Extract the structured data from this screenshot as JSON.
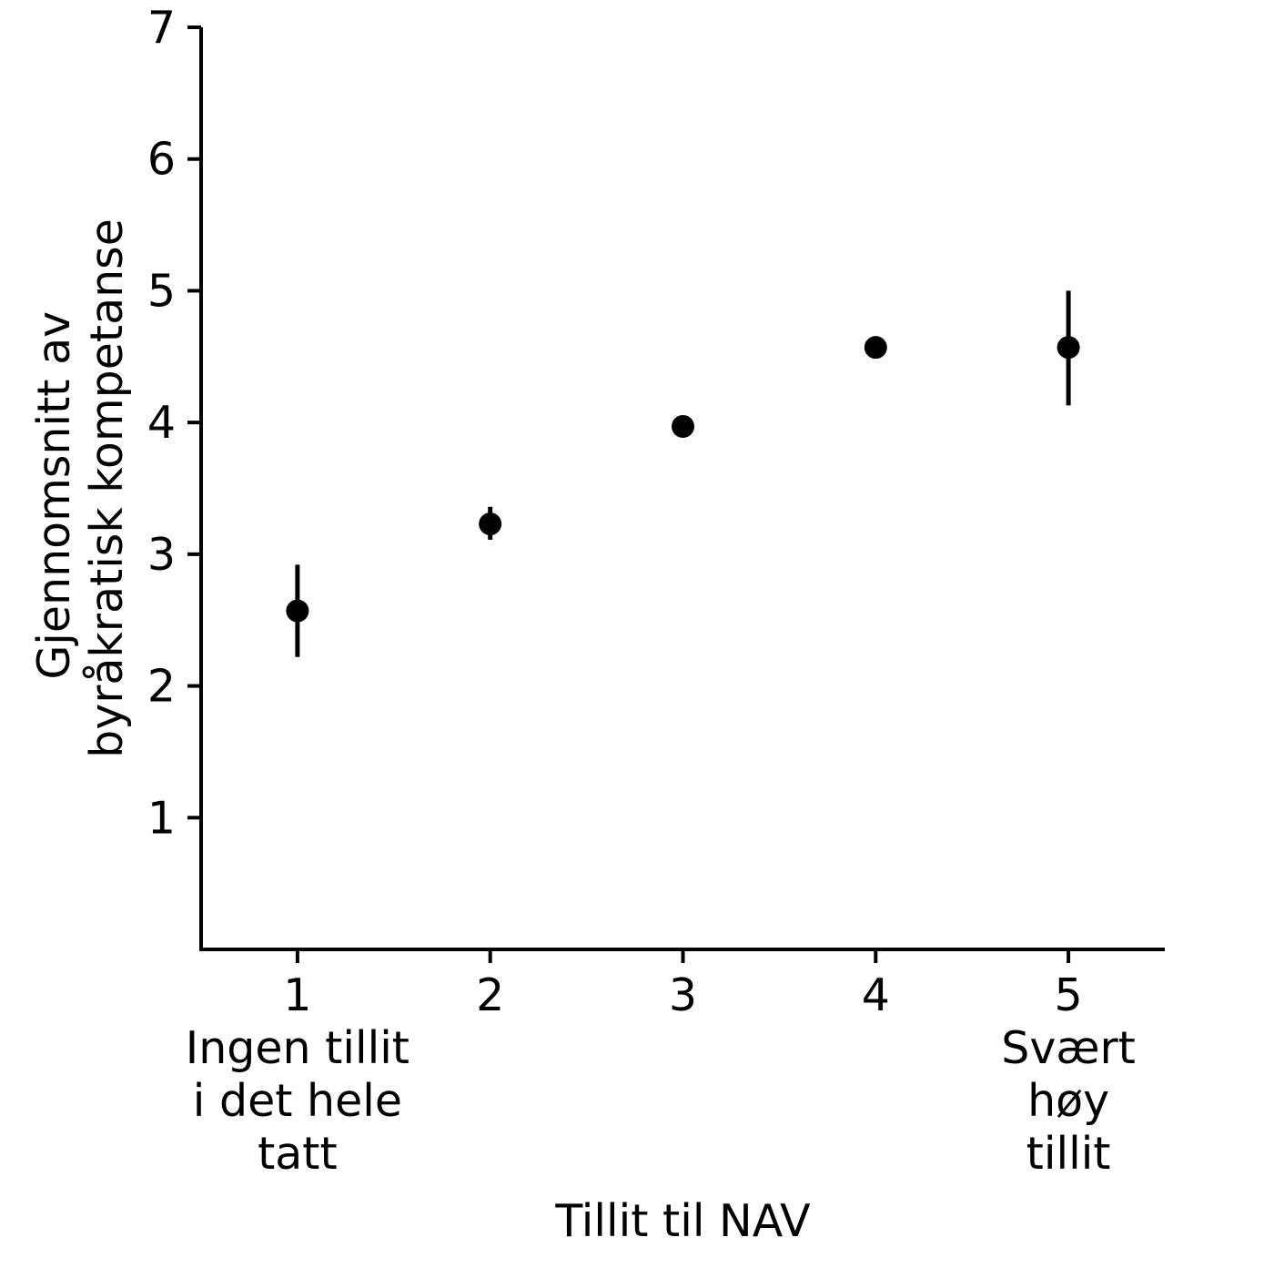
{
  "chart_data": {
    "type": "scatter",
    "title": "",
    "xlabel": "Tillit til NAV",
    "ylabel_lines": [
      "Gjennomsnitt av",
      "byråkratisk kompetanse"
    ],
    "x_ticks": [
      {
        "value": 1,
        "lines": [
          "1",
          "Ingen tillit",
          "i det hele",
          "tatt"
        ]
      },
      {
        "value": 2,
        "lines": [
          "2"
        ]
      },
      {
        "value": 3,
        "lines": [
          "3"
        ]
      },
      {
        "value": 4,
        "lines": [
          "4"
        ]
      },
      {
        "value": 5,
        "lines": [
          "5",
          "Svært",
          "høy",
          "tillit"
        ]
      }
    ],
    "y_ticks": [
      1,
      2,
      3,
      4,
      5,
      6,
      7
    ],
    "xlim": [
      0.5,
      5.5
    ],
    "ylim": [
      0,
      7
    ],
    "grid": false,
    "series": [
      {
        "points": [
          {
            "x": 1,
            "y": 2.57,
            "lower": 2.22,
            "upper": 2.92
          },
          {
            "x": 2,
            "y": 3.23,
            "lower": 3.11,
            "upper": 3.36
          },
          {
            "x": 3,
            "y": 3.97,
            "lower": 3.93,
            "upper": 4.01
          },
          {
            "x": 4,
            "y": 4.57,
            "lower": 4.53,
            "upper": 4.61
          },
          {
            "x": 5,
            "y": 4.57,
            "lower": 4.13,
            "upper": 5.0
          }
        ]
      }
    ],
    "colors": {
      "points": "#000000",
      "axes": "#000000"
    }
  }
}
